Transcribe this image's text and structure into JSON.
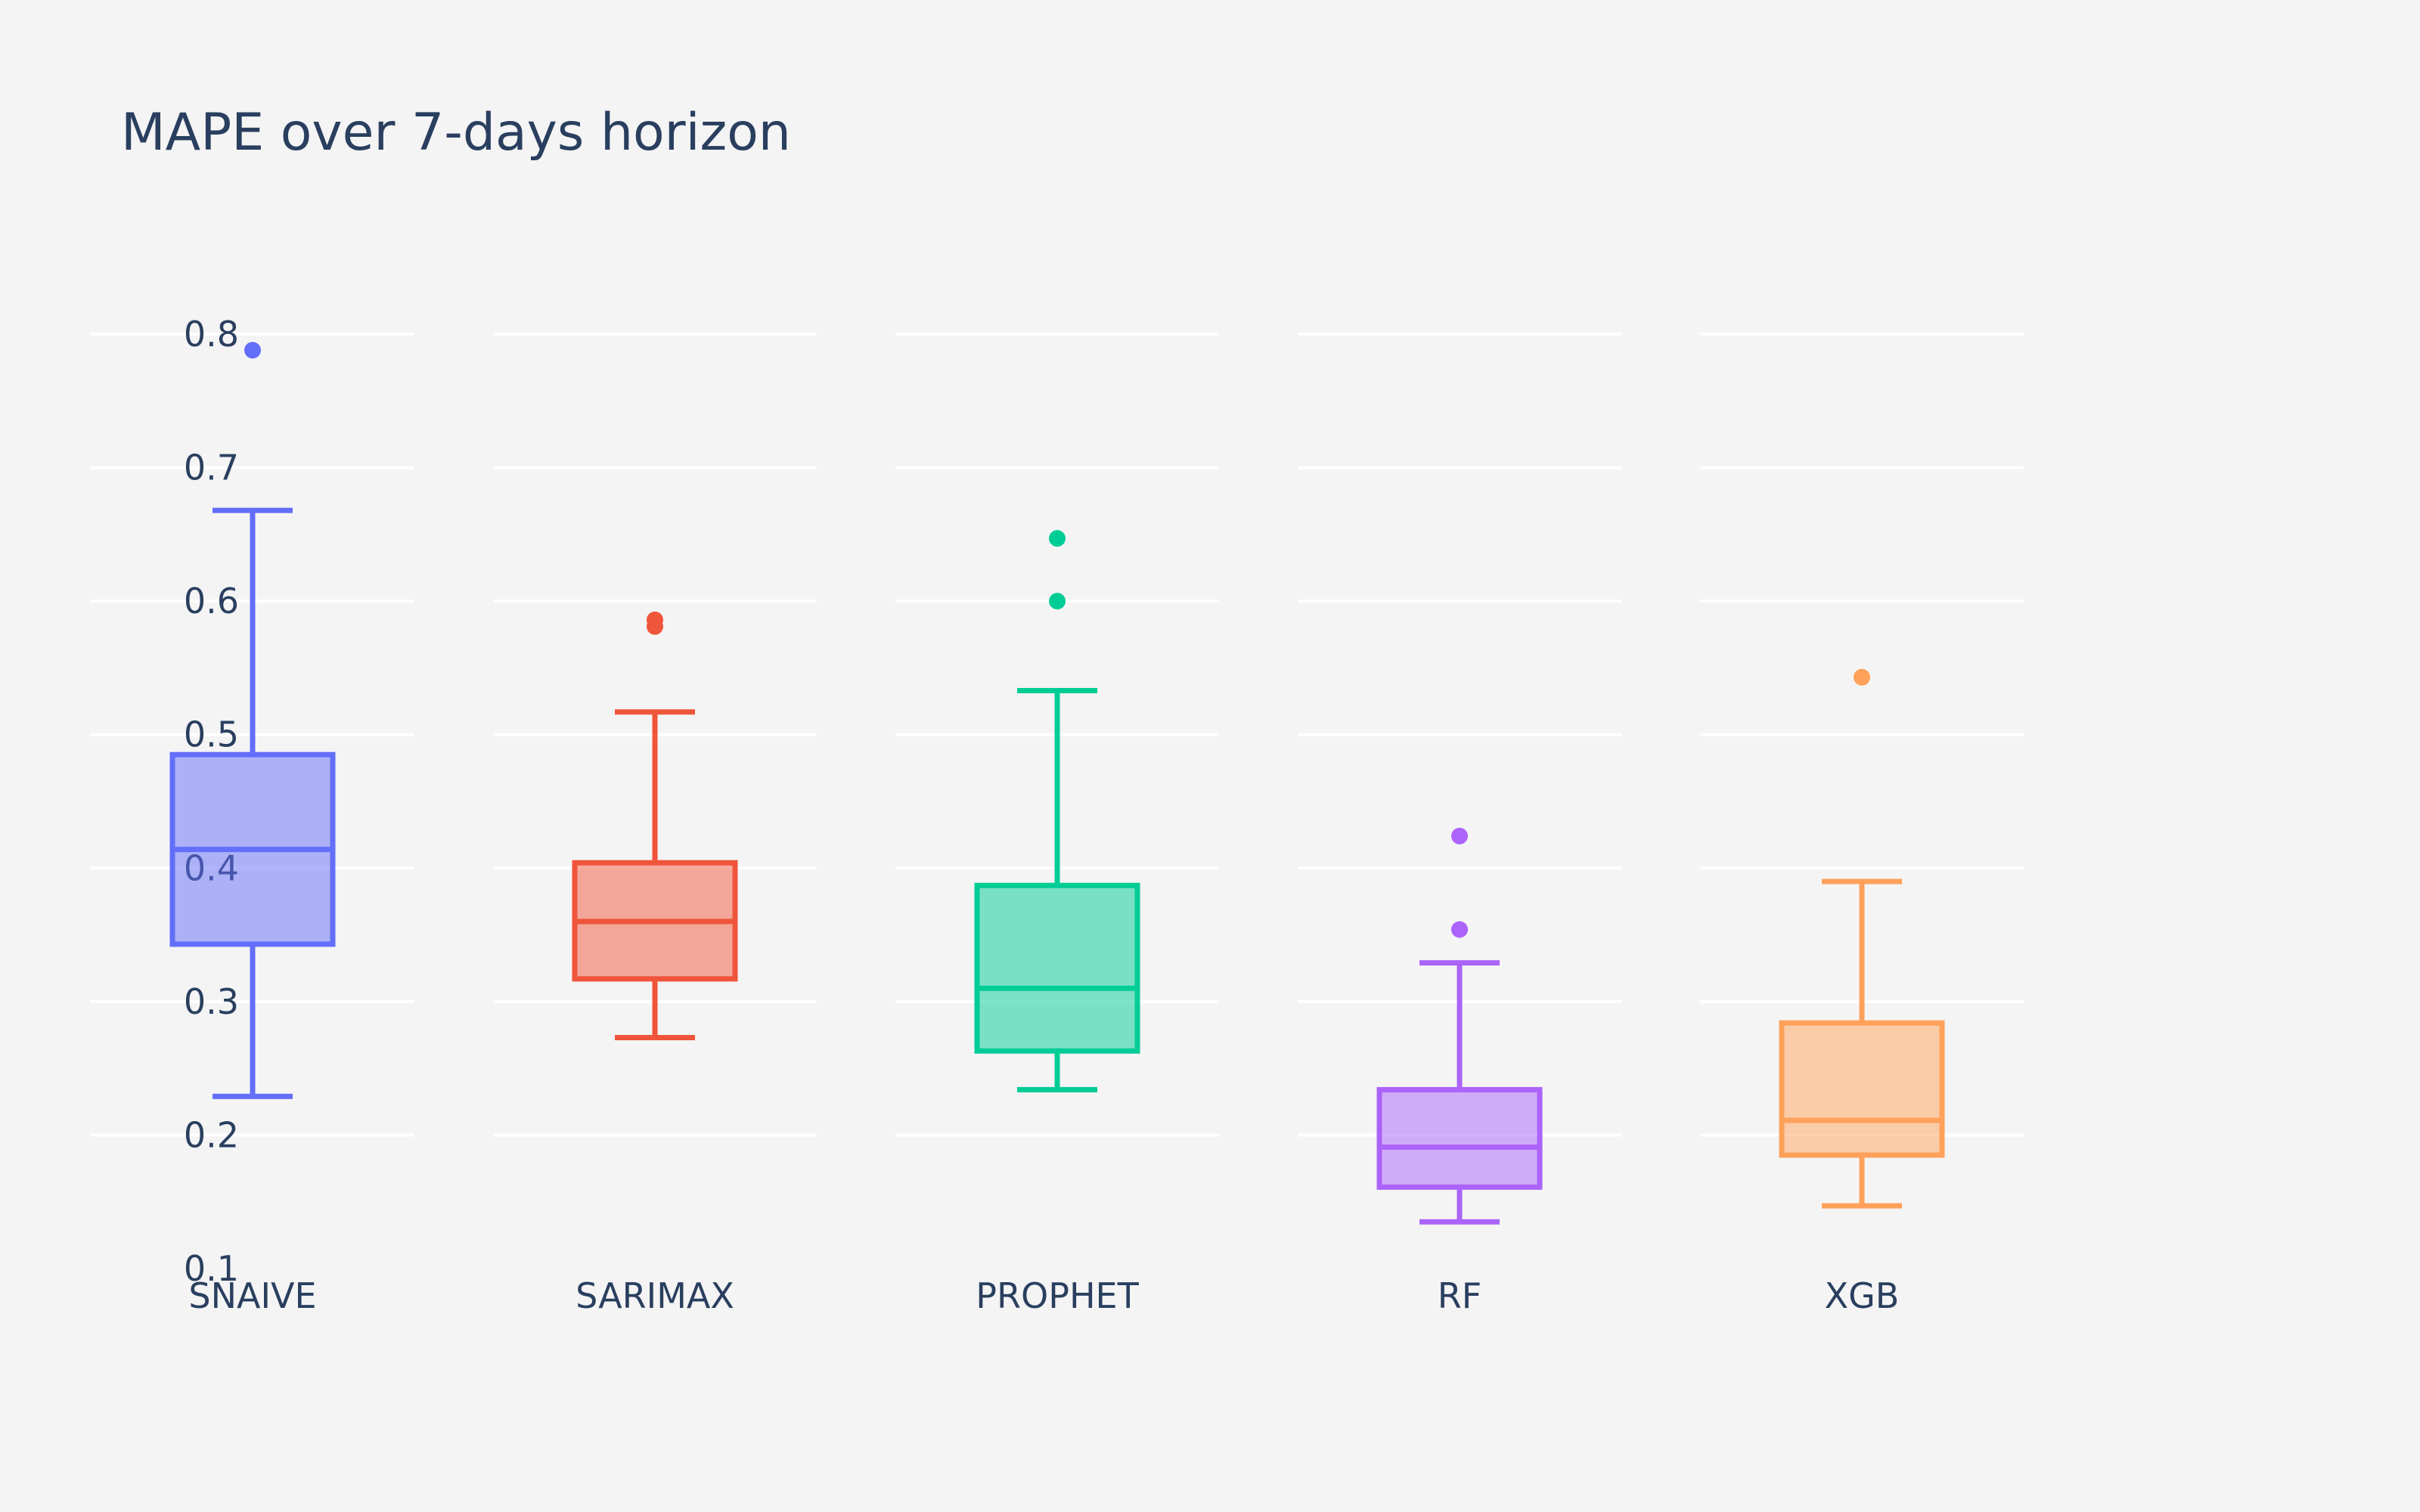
{
  "chart_data": {
    "type": "box",
    "title": "MAPE over 7-days horizon",
    "xlabel": "",
    "ylabel": "",
    "ylim": [
      0.1,
      0.8
    ],
    "yticks": [
      "0.1",
      "0.2",
      "0.3",
      "0.4",
      "0.5",
      "0.6",
      "0.7",
      "0.8"
    ],
    "grid": true,
    "legend": "none",
    "categories": [
      "SNAIVE",
      "SARIMAX",
      "PROPHET",
      "RF",
      "XGB"
    ],
    "series": [
      {
        "category": "SNAIVE",
        "color": "#636efa",
        "whisker_low": 0.229,
        "q1": 0.343,
        "median": 0.414,
        "q3": 0.485,
        "whisker_high": 0.668,
        "outliers": [
          0.788
        ]
      },
      {
        "category": "SARIMAX",
        "color": "#ef553b",
        "whisker_low": 0.273,
        "q1": 0.317,
        "median": 0.36,
        "q3": 0.404,
        "whisker_high": 0.517,
        "outliers": [
          0.586,
          0.581
        ]
      },
      {
        "category": "PROPHET",
        "color": "#00cc96",
        "whisker_low": 0.234,
        "q1": 0.263,
        "median": 0.31,
        "q3": 0.387,
        "whisker_high": 0.533,
        "outliers": [
          0.6,
          0.647
        ]
      },
      {
        "category": "RF",
        "color": "#ab63fa",
        "whisker_low": 0.135,
        "q1": 0.161,
        "median": 0.191,
        "q3": 0.234,
        "whisker_high": 0.329,
        "outliers": [
          0.354,
          0.424
        ]
      },
      {
        "category": "XGB",
        "color": "#ffa15a",
        "whisker_low": 0.147,
        "q1": 0.185,
        "median": 0.211,
        "q3": 0.284,
        "whisker_high": 0.39,
        "outliers": [
          0.543
        ]
      }
    ]
  }
}
